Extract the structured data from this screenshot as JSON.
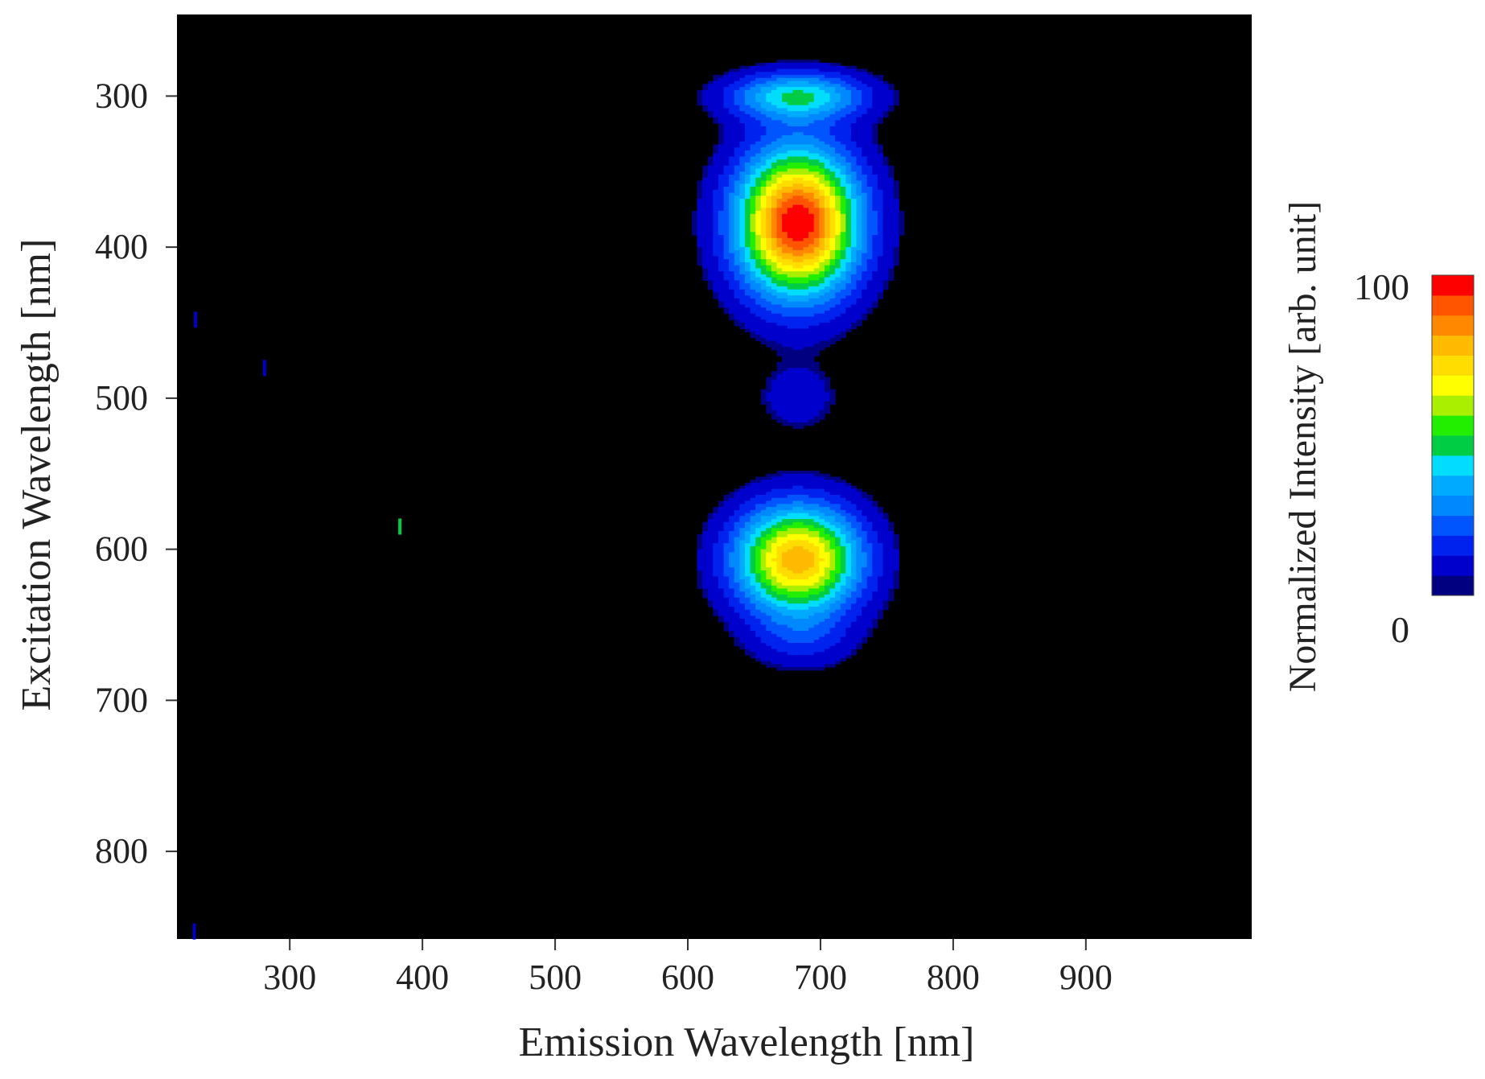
{
  "chart_data": {
    "type": "heatmap",
    "title": "",
    "xlabel": "Emission Wavelength [nm]",
    "ylabel": "Excitation Wavelength [nm]",
    "xlim": [
      215,
      1025
    ],
    "ylim": [
      246,
      858
    ],
    "x_ticks": [
      300,
      400,
      500,
      600,
      700,
      800,
      900
    ],
    "y_ticks": [
      300,
      400,
      500,
      600,
      700,
      800
    ],
    "y_inverted": true,
    "background": "#000000",
    "colorbar": {
      "label": "Normalized Intensity [arb. unit]",
      "min": 0,
      "max": 100,
      "min_label": "0",
      "max_label": "100",
      "colors": [
        "#000080",
        "#0000cc",
        "#0022ee",
        "#0055ff",
        "#0088ff",
        "#00aaff",
        "#00ddff",
        "#00cc44",
        "#22ee00",
        "#aaee00",
        "#ffff00",
        "#ffdd00",
        "#ffbb00",
        "#ff8800",
        "#ff5500",
        "#ff0000"
      ]
    },
    "peaks": [
      {
        "name": "peak-300",
        "x": 683,
        "y": 300,
        "sx": 36,
        "sy": 11,
        "amplitude": 42
      },
      {
        "name": "peak-385",
        "x": 683,
        "y": 384,
        "sx": 32,
        "sy": 34,
        "amplitude": 100
      },
      {
        "name": "peak-tail-490",
        "x": 683,
        "y": 500,
        "sx": 22,
        "sy": 16,
        "amplitude": 10
      },
      {
        "name": "peak-608",
        "x": 683,
        "y": 607,
        "sx": 33,
        "sy": 25,
        "amplitude": 80
      },
      {
        "name": "peak-tail-660",
        "x": 686,
        "y": 660,
        "sx": 28,
        "sy": 14,
        "amplitude": 12
      }
    ],
    "artifacts": [
      {
        "x": 383,
        "y": 585,
        "amplitude": 45
      },
      {
        "x": 281,
        "y": 480,
        "amplitude": 12
      },
      {
        "x": 229,
        "y": 448,
        "amplitude": 10
      },
      {
        "x": 228,
        "y": 853,
        "amplitude": 12
      }
    ]
  }
}
